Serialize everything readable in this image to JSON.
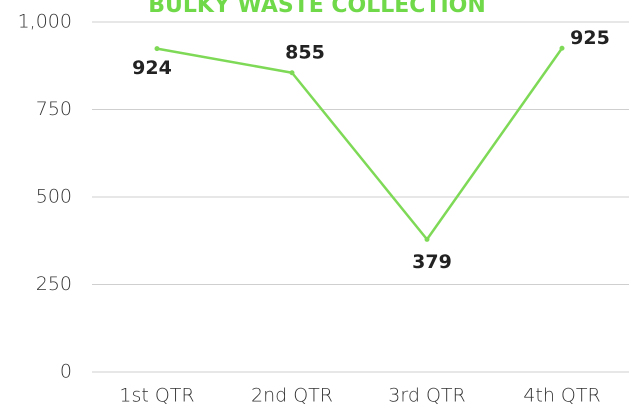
{
  "chart_data": {
    "type": "line",
    "title": "BULKY WASTE COLLECTION",
    "categories": [
      "1st QTR",
      "2nd QTR",
      "3rd QTR",
      "4th QTR"
    ],
    "series": [
      {
        "name": "Bulky Waste",
        "color": "#7ed957",
        "values": [
          924,
          855,
          379,
          925
        ]
      }
    ],
    "ylim": [
      0,
      1000
    ],
    "yticks": [
      0,
      250,
      500,
      750,
      {
        "value": 1000,
        "label": "1,000"
      }
    ],
    "grid": true
  }
}
